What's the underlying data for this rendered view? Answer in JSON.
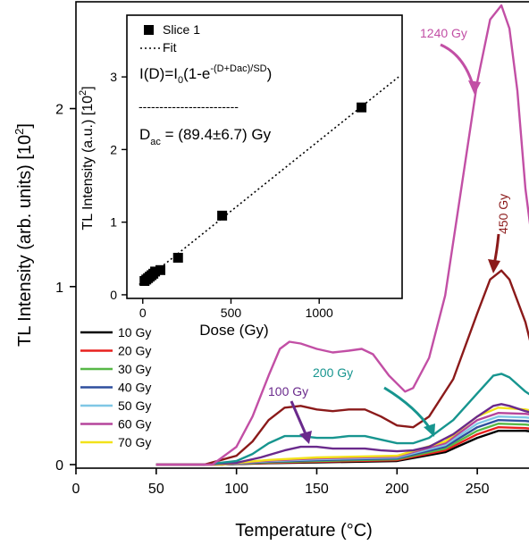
{
  "chart_data": [
    {
      "type": "line",
      "xlabel": "Temperature (°C)",
      "ylabel": "TL Intensity (arb. units) [10",
      "ylabel_sup": "2",
      "ylabel_end": "]",
      "xlim": [
        0,
        285
      ],
      "ylim": [
        -0.02,
        2.6
      ],
      "xticks": [
        0,
        50,
        100,
        150,
        200,
        250
      ],
      "yticks": [
        0,
        1,
        2
      ],
      "grid": false,
      "legend_position": "lower-left",
      "series": [
        {
          "name": "10 Gy",
          "color": "#000000",
          "x": [
            50,
            90,
            100,
            120,
            150,
            200,
            230,
            250,
            263,
            280,
            285
          ],
          "y": [
            0,
            0,
            0.003,
            0.008,
            0.012,
            0.02,
            0.07,
            0.15,
            0.19,
            0.19,
            0.185
          ]
        },
        {
          "name": "20 Gy",
          "color": "#e8201e",
          "x": [
            50,
            90,
            100,
            120,
            150,
            200,
            230,
            250,
            263,
            280,
            285
          ],
          "y": [
            0,
            0,
            0.004,
            0.01,
            0.016,
            0.025,
            0.08,
            0.17,
            0.21,
            0.205,
            0.2
          ]
        },
        {
          "name": "30 Gy",
          "color": "#57b847",
          "x": [
            50,
            90,
            100,
            120,
            150,
            200,
            230,
            250,
            263,
            280,
            285
          ],
          "y": [
            0,
            0,
            0.005,
            0.013,
            0.02,
            0.03,
            0.09,
            0.19,
            0.23,
            0.225,
            0.22
          ]
        },
        {
          "name": "40 Gy",
          "color": "#2f4f9e",
          "x": [
            50,
            90,
            100,
            120,
            150,
            200,
            230,
            250,
            263,
            280,
            285
          ],
          "y": [
            0,
            0,
            0.006,
            0.016,
            0.025,
            0.035,
            0.1,
            0.21,
            0.25,
            0.245,
            0.24
          ]
        },
        {
          "name": "50 Gy",
          "color": "#7fc7e5",
          "x": [
            50,
            90,
            100,
            120,
            150,
            200,
            230,
            250,
            263,
            280,
            285
          ],
          "y": [
            0,
            0,
            0.007,
            0.019,
            0.03,
            0.04,
            0.11,
            0.23,
            0.27,
            0.265,
            0.26
          ]
        },
        {
          "name": "60 Gy",
          "color": "#b5459b",
          "x": [
            50,
            90,
            100,
            120,
            150,
            200,
            230,
            250,
            263,
            280,
            285
          ],
          "y": [
            0,
            0,
            0.008,
            0.022,
            0.035,
            0.045,
            0.12,
            0.25,
            0.29,
            0.285,
            0.28
          ]
        },
        {
          "name": "70 Gy",
          "color": "#f2e21a",
          "x": [
            50,
            90,
            100,
            120,
            150,
            200,
            230,
            250,
            263,
            280,
            285
          ],
          "y": [
            0,
            0,
            0.01,
            0.026,
            0.04,
            0.05,
            0.13,
            0.27,
            0.32,
            0.31,
            0.3
          ]
        },
        {
          "name": "100 Gy",
          "color": "#6a2a8c",
          "x": [
            50,
            80,
            100,
            115,
            130,
            140,
            150,
            160,
            170,
            180,
            190,
            200,
            210,
            220,
            235,
            250,
            260,
            265,
            270,
            280,
            285
          ],
          "y": [
            0,
            0,
            0.01,
            0.04,
            0.08,
            0.1,
            0.1,
            0.09,
            0.09,
            0.09,
            0.08,
            0.075,
            0.08,
            0.1,
            0.17,
            0.27,
            0.33,
            0.34,
            0.33,
            0.3,
            0.29
          ]
        },
        {
          "name": "200 Gy",
          "color": "#17958f",
          "x": [
            50,
            80,
            100,
            110,
            120,
            130,
            140,
            150,
            160,
            170,
            180,
            190,
            200,
            210,
            220,
            235,
            250,
            260,
            265,
            270,
            280,
            285
          ],
          "y": [
            0,
            0,
            0.02,
            0.06,
            0.12,
            0.16,
            0.16,
            0.15,
            0.15,
            0.16,
            0.16,
            0.14,
            0.12,
            0.12,
            0.15,
            0.25,
            0.4,
            0.5,
            0.51,
            0.49,
            0.41,
            0.38
          ]
        },
        {
          "name": "450 Gy",
          "color": "#8b1a1a",
          "x": [
            50,
            80,
            100,
            110,
            120,
            130,
            140,
            150,
            160,
            170,
            180,
            190,
            200,
            210,
            220,
            235,
            250,
            258,
            265,
            270,
            280,
            285
          ],
          "y": [
            0,
            0,
            0.05,
            0.13,
            0.25,
            0.32,
            0.33,
            0.31,
            0.3,
            0.31,
            0.31,
            0.27,
            0.22,
            0.21,
            0.27,
            0.48,
            0.85,
            1.04,
            1.09,
            1.04,
            0.8,
            0.62
          ]
        },
        {
          "name": "1240 Gy",
          "color": "#c24fa5",
          "x": [
            50,
            85,
            100,
            110,
            120,
            127,
            133,
            140,
            150,
            160,
            170,
            178,
            185,
            195,
            205,
            210,
            220,
            230,
            240,
            250,
            258,
            265,
            270,
            275,
            280,
            285
          ],
          "y": [
            0,
            0,
            0.1,
            0.27,
            0.5,
            0.65,
            0.69,
            0.68,
            0.65,
            0.63,
            0.64,
            0.65,
            0.62,
            0.5,
            0.41,
            0.43,
            0.6,
            0.95,
            1.55,
            2.15,
            2.5,
            2.58,
            2.45,
            2.1,
            1.55,
            1.2
          ]
        }
      ],
      "annotations": [
        {
          "text": "1240 Gy",
          "color": "#c24fa5"
        },
        {
          "text": "450 Gy",
          "color": "#8b1a1a"
        },
        {
          "text": "200 Gy",
          "color": "#17958f"
        },
        {
          "text": "100 Gy",
          "color": "#6a2a8c"
        }
      ]
    },
    {
      "type": "scatter",
      "xlabel": "Dose (Gy)",
      "ylabel": "TL Intensity (a.u.) [10",
      "ylabel_sup": "2",
      "ylabel_end": "]",
      "xlim": [
        -90,
        1470
      ],
      "ylim": [
        -0.05,
        3.85
      ],
      "xticks": [
        0,
        500,
        1000
      ],
      "yticks": [
        0,
        1,
        2,
        3
      ],
      "grid": false,
      "legend_position": "top-left",
      "series": [
        {
          "name": "Slice 1",
          "color": "#000000",
          "x": [
            10,
            20,
            30,
            40,
            50,
            60,
            70,
            100,
            200,
            450,
            1240
          ],
          "y": [
            0.19,
            0.21,
            0.23,
            0.25,
            0.27,
            0.29,
            0.32,
            0.34,
            0.51,
            1.09,
            2.58
          ]
        },
        {
          "name": "Fit",
          "color": "#000000",
          "style": "dotted",
          "x": [
            -20,
            1450
          ],
          "y": [
            0.14,
            3.0
          ]
        }
      ],
      "text_lines": [
        "I(D)=I",
        "0",
        "(1-e",
        "-(D+Dac)/SD",
        ")",
        "------------------------",
        "D",
        "ac",
        " = (89.4±6.7) Gy"
      ]
    }
  ]
}
